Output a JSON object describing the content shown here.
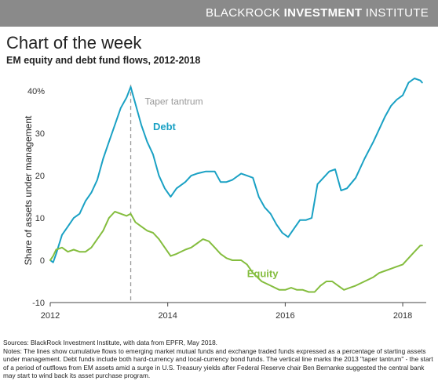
{
  "header": {
    "brand_light": "BLACKROCK ",
    "brand_bold": "INVESTMENT",
    "brand_tail": " INSTITUTE"
  },
  "title": "Chart of the week",
  "subtitle": "EM equity and debt fund flows, 2012-2018",
  "notes": {
    "sources": "Sources: BlackRock Investment Institute, with data from EPFR, May 2018.",
    "text": "Notes: The lines show cumulative flows to emerging market mutual funds and exchange traded funds expressed as a percentage of starting assets under management. Debt funds include both hard-currency and local-currency bond funds. The vertical line marks the 2013 \"taper tantrum\" - the start of a period of outflows from EM assets amid a surge in U.S. Treasury yields after Federal Reserve chair Ben Bernanke suggested the central bank may start to wind back its asset purchase program."
  },
  "colors": {
    "debt": "#1aa1c4",
    "equity": "#84bd3e",
    "marker": "#999999",
    "topbar": "#8a8a8a"
  },
  "chart_data": {
    "type": "line",
    "title": "EM equity and debt fund flows, 2012-2018",
    "ylabel": "Share of assets under management",
    "xlim": [
      2012,
      2018.4
    ],
    "ylim": [
      -10,
      43
    ],
    "x_ticks": [
      2012,
      2014,
      2016,
      2018
    ],
    "y_ticks": [
      {
        "value": -10,
        "label": "-10"
      },
      {
        "value": 0,
        "label": "0"
      },
      {
        "value": 10,
        "label": "10"
      },
      {
        "value": 20,
        "label": "20"
      },
      {
        "value": 30,
        "label": "30"
      },
      {
        "value": 40,
        "label": "40%"
      }
    ],
    "grid": false,
    "vline": {
      "x": 2013.37,
      "label": "Taper tantrum"
    },
    "series": [
      {
        "name": "Debt",
        "label_at": [
          2013.75,
          31.5
        ],
        "points": [
          [
            2012.0,
            0
          ],
          [
            2012.05,
            -0.5
          ],
          [
            2012.1,
            1.5
          ],
          [
            2012.2,
            6
          ],
          [
            2012.3,
            8
          ],
          [
            2012.4,
            10
          ],
          [
            2012.5,
            11
          ],
          [
            2012.6,
            14
          ],
          [
            2012.7,
            16
          ],
          [
            2012.8,
            19
          ],
          [
            2012.9,
            24
          ],
          [
            2013.0,
            28
          ],
          [
            2013.1,
            32
          ],
          [
            2013.2,
            36
          ],
          [
            2013.3,
            38.5
          ],
          [
            2013.37,
            41
          ],
          [
            2013.45,
            37
          ],
          [
            2013.55,
            32
          ],
          [
            2013.65,
            28
          ],
          [
            2013.75,
            25
          ],
          [
            2013.85,
            20
          ],
          [
            2013.95,
            17
          ],
          [
            2014.05,
            15
          ],
          [
            2014.15,
            17
          ],
          [
            2014.3,
            18.5
          ],
          [
            2014.4,
            20
          ],
          [
            2014.5,
            20.5
          ],
          [
            2014.65,
            21
          ],
          [
            2014.8,
            21
          ],
          [
            2014.9,
            18.5
          ],
          [
            2015.0,
            18.5
          ],
          [
            2015.1,
            19
          ],
          [
            2015.25,
            20.5
          ],
          [
            2015.35,
            20
          ],
          [
            2015.45,
            19.5
          ],
          [
            2015.55,
            15
          ],
          [
            2015.65,
            12.5
          ],
          [
            2015.75,
            11
          ],
          [
            2015.85,
            8.5
          ],
          [
            2015.95,
            6.5
          ],
          [
            2016.05,
            5.5
          ],
          [
            2016.15,
            7.5
          ],
          [
            2016.25,
            9.5
          ],
          [
            2016.35,
            9.5
          ],
          [
            2016.45,
            10
          ],
          [
            2016.55,
            18
          ],
          [
            2016.65,
            19.5
          ],
          [
            2016.75,
            21
          ],
          [
            2016.85,
            21.5
          ],
          [
            2016.95,
            16.5
          ],
          [
            2017.05,
            17
          ],
          [
            2017.2,
            19.5
          ],
          [
            2017.35,
            24
          ],
          [
            2017.5,
            28
          ],
          [
            2017.6,
            31
          ],
          [
            2017.7,
            34
          ],
          [
            2017.8,
            36.5
          ],
          [
            2017.9,
            38
          ],
          [
            2018.0,
            39
          ],
          [
            2018.1,
            42
          ],
          [
            2018.2,
            43
          ],
          [
            2018.3,
            42.5
          ],
          [
            2018.33,
            42
          ]
        ]
      },
      {
        "name": "Equity",
        "label_at": [
          2015.35,
          -3.2
        ],
        "points": [
          [
            2012.0,
            0
          ],
          [
            2012.05,
            1
          ],
          [
            2012.1,
            2.5
          ],
          [
            2012.2,
            3
          ],
          [
            2012.3,
            2
          ],
          [
            2012.4,
            2.5
          ],
          [
            2012.5,
            2
          ],
          [
            2012.6,
            2
          ],
          [
            2012.7,
            3
          ],
          [
            2012.8,
            5
          ],
          [
            2012.9,
            7
          ],
          [
            2013.0,
            10
          ],
          [
            2013.1,
            11.5
          ],
          [
            2013.2,
            11
          ],
          [
            2013.3,
            10.5
          ],
          [
            2013.37,
            11
          ],
          [
            2013.45,
            9
          ],
          [
            2013.55,
            8
          ],
          [
            2013.65,
            7
          ],
          [
            2013.75,
            6.5
          ],
          [
            2013.85,
            5
          ],
          [
            2013.95,
            3
          ],
          [
            2014.05,
            1
          ],
          [
            2014.15,
            1.5
          ],
          [
            2014.3,
            2.5
          ],
          [
            2014.4,
            3
          ],
          [
            2014.5,
            4
          ],
          [
            2014.6,
            5
          ],
          [
            2014.7,
            4.5
          ],
          [
            2014.8,
            3
          ],
          [
            2014.9,
            1.5
          ],
          [
            2015.0,
            0.5
          ],
          [
            2015.1,
            0
          ],
          [
            2015.25,
            0
          ],
          [
            2015.35,
            -1
          ],
          [
            2015.45,
            -3
          ],
          [
            2015.6,
            -5
          ],
          [
            2015.75,
            -6
          ],
          [
            2015.9,
            -7
          ],
          [
            2016.0,
            -7
          ],
          [
            2016.1,
            -6.5
          ],
          [
            2016.2,
            -7
          ],
          [
            2016.3,
            -7
          ],
          [
            2016.4,
            -7.5
          ],
          [
            2016.5,
            -7.5
          ],
          [
            2016.6,
            -6
          ],
          [
            2016.7,
            -5
          ],
          [
            2016.8,
            -5
          ],
          [
            2016.9,
            -6
          ],
          [
            2017.0,
            -7
          ],
          [
            2017.1,
            -6.5
          ],
          [
            2017.2,
            -6
          ],
          [
            2017.35,
            -5
          ],
          [
            2017.5,
            -4
          ],
          [
            2017.6,
            -3
          ],
          [
            2017.7,
            -2.5
          ],
          [
            2017.8,
            -2
          ],
          [
            2017.9,
            -1.5
          ],
          [
            2018.0,
            -1
          ],
          [
            2018.1,
            0.5
          ],
          [
            2018.2,
            2
          ],
          [
            2018.3,
            3.5
          ],
          [
            2018.33,
            3.5
          ]
        ]
      }
    ]
  }
}
